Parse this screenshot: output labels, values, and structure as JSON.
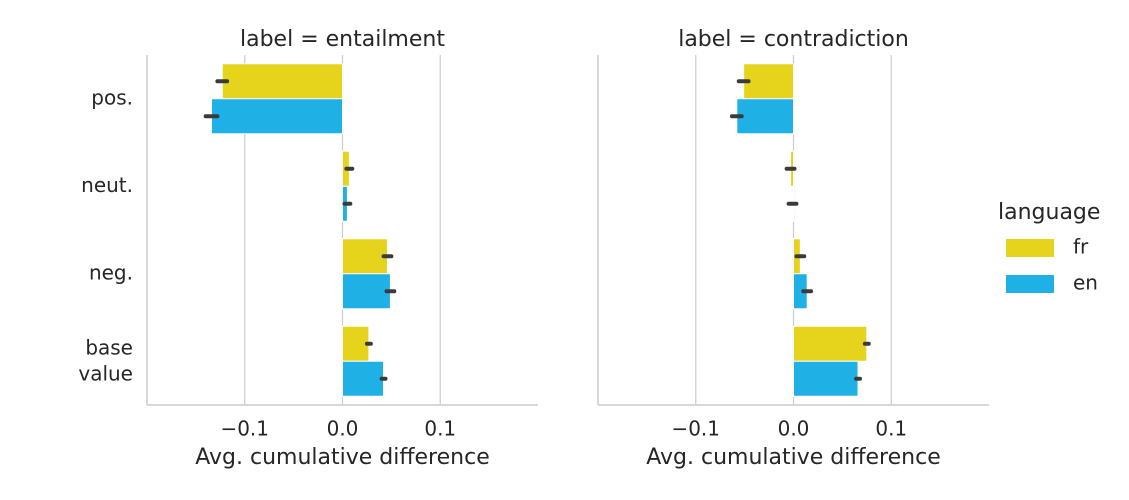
{
  "chart_data": [
    {
      "type": "barh",
      "title": "label = entailment",
      "xlabel": "Avg. cumulative difference",
      "categories": [
        "pos.",
        "neut.",
        "neg.",
        "base\nvalue"
      ],
      "legend_title": "language",
      "xlim": [
        -0.2,
        0.2
      ],
      "xticks": [
        {
          "value": -0.1,
          "label": "−0.1"
        },
        {
          "value": 0,
          "label": "0.0"
        },
        {
          "value": 0.1,
          "label": "0.1"
        }
      ],
      "grid": true,
      "series": [
        {
          "name": "fr",
          "color": "#e6d31c",
          "values": [
            -0.123,
            0.007,
            0.046,
            0.027
          ],
          "errors": [
            0.005,
            0.003,
            0.004,
            0.002
          ]
        },
        {
          "name": "en",
          "color": "#1fb0e6",
          "values": [
            -0.134,
            0.005,
            0.049,
            0.042
          ],
          "errors": [
            0.006,
            0.003,
            0.004,
            0.002
          ]
        }
      ]
    },
    {
      "type": "barh",
      "title": "label = contradiction",
      "xlabel": "Avg. cumulative difference",
      "xlim": [
        -0.2,
        0.2
      ],
      "xticks": [
        {
          "value": -0.1,
          "label": "−0.1"
        },
        {
          "value": 0,
          "label": "0.0"
        },
        {
          "value": 0.1,
          "label": "0.1"
        }
      ],
      "grid": true,
      "series": [
        {
          "name": "fr",
          "color": "#e6d31c",
          "values": [
            -0.051,
            -0.003,
            0.007,
            0.075
          ],
          "errors": [
            0.005,
            0.004,
            0.004,
            0.002
          ]
        },
        {
          "name": "en",
          "color": "#1fb0e6",
          "values": [
            -0.058,
            -0.001,
            0.014,
            0.066
          ],
          "errors": [
            0.005,
            0.004,
            0.004,
            0.002
          ]
        }
      ]
    }
  ]
}
